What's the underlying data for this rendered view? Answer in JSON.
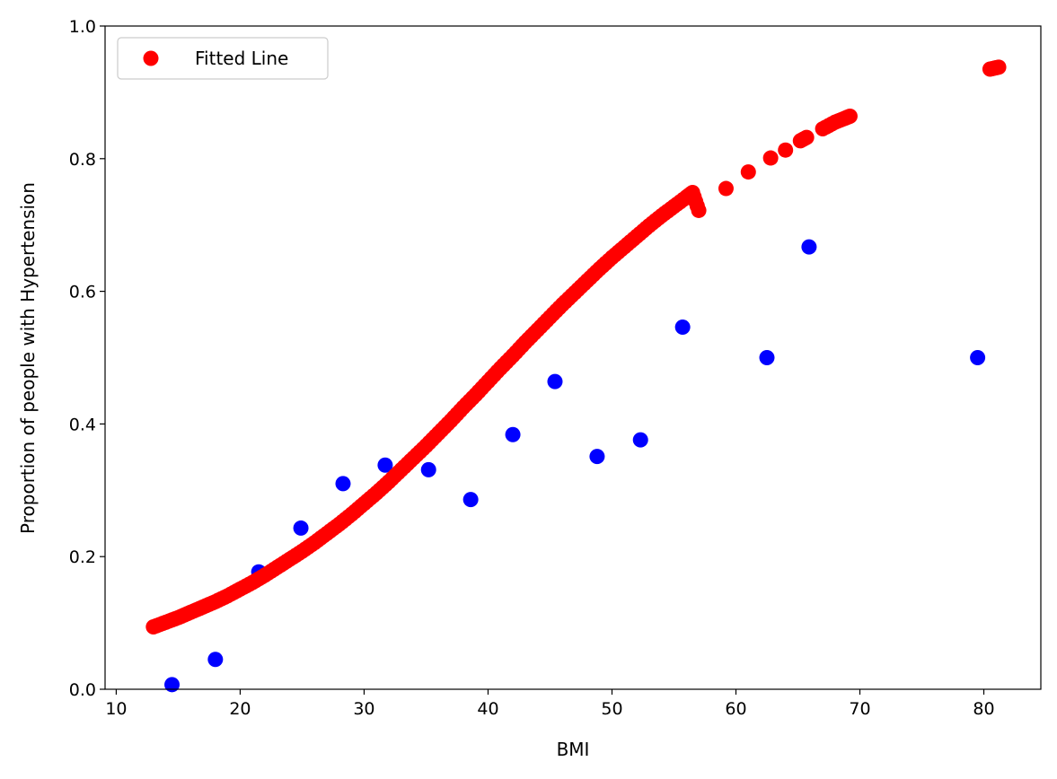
{
  "chart_data": {
    "type": "scatter",
    "title": "",
    "xlabel": "BMI",
    "ylabel": "Proportion of people with Hypertension",
    "xlim": [
      9.1,
      84.6
    ],
    "ylim": [
      0,
      1.0
    ],
    "xticks": [
      10,
      20,
      30,
      40,
      50,
      60,
      70,
      80
    ],
    "xtick_labels": [
      "10",
      "20",
      "30",
      "40",
      "50",
      "60",
      "70",
      "80"
    ],
    "yticks": [
      0,
      0.2,
      0.4,
      0.6,
      0.8,
      1.0
    ],
    "ytick_labels": [
      "0.0",
      "0.2",
      "0.4",
      "0.6",
      "0.8",
      "1.0"
    ],
    "grid": false,
    "legend_position": "top-left",
    "series": [
      {
        "color": "#0000ff",
        "x": [
          14.5,
          18.0,
          21.5,
          24.9,
          28.3,
          31.7,
          35.2,
          38.6,
          42.0,
          45.4,
          48.8,
          52.3,
          55.7,
          62.5,
          65.9,
          79.5
        ],
        "y": [
          0.007,
          0.045,
          0.177,
          0.243,
          0.31,
          0.338,
          0.331,
          0.286,
          0.384,
          0.464,
          0.351,
          0.376,
          0.546,
          0.5,
          0.667,
          0.5
        ]
      },
      {
        "name": "Fitted Line",
        "color": "#ff0000",
        "x": [
          13,
          14,
          15,
          16,
          17,
          18,
          19,
          20,
          21,
          22,
          23,
          24,
          25,
          26,
          27,
          28,
          29,
          30,
          31,
          32,
          33,
          34,
          35,
          36,
          37,
          38,
          39,
          40,
          41,
          42,
          43,
          44,
          45,
          46,
          47,
          48,
          49,
          50,
          51,
          52,
          53,
          54,
          55,
          56,
          56.5,
          57,
          59.2,
          61,
          62.8,
          64,
          65.2,
          65.7,
          67,
          68,
          68.8,
          69.2,
          80.5,
          81.2
        ],
        "y": [
          0.094,
          0.101,
          0.108,
          0.116,
          0.124,
          0.132,
          0.141,
          0.151,
          0.161,
          0.172,
          0.184,
          0.196,
          0.208,
          0.221,
          0.235,
          0.249,
          0.264,
          0.28,
          0.296,
          0.313,
          0.331,
          0.349,
          0.367,
          0.386,
          0.405,
          0.425,
          0.444,
          0.464,
          0.484,
          0.503,
          0.523,
          0.542,
          0.561,
          0.58,
          0.598,
          0.616,
          0.634,
          0.651,
          0.667,
          0.683,
          0.699,
          0.714,
          0.728,
          0.742,
          0.749,
          0.722,
          0.755,
          0.78,
          0.801,
          0.813,
          0.827,
          0.832,
          0.845,
          0.855,
          0.861,
          0.864,
          0.935,
          0.938
        ]
      }
    ]
  }
}
